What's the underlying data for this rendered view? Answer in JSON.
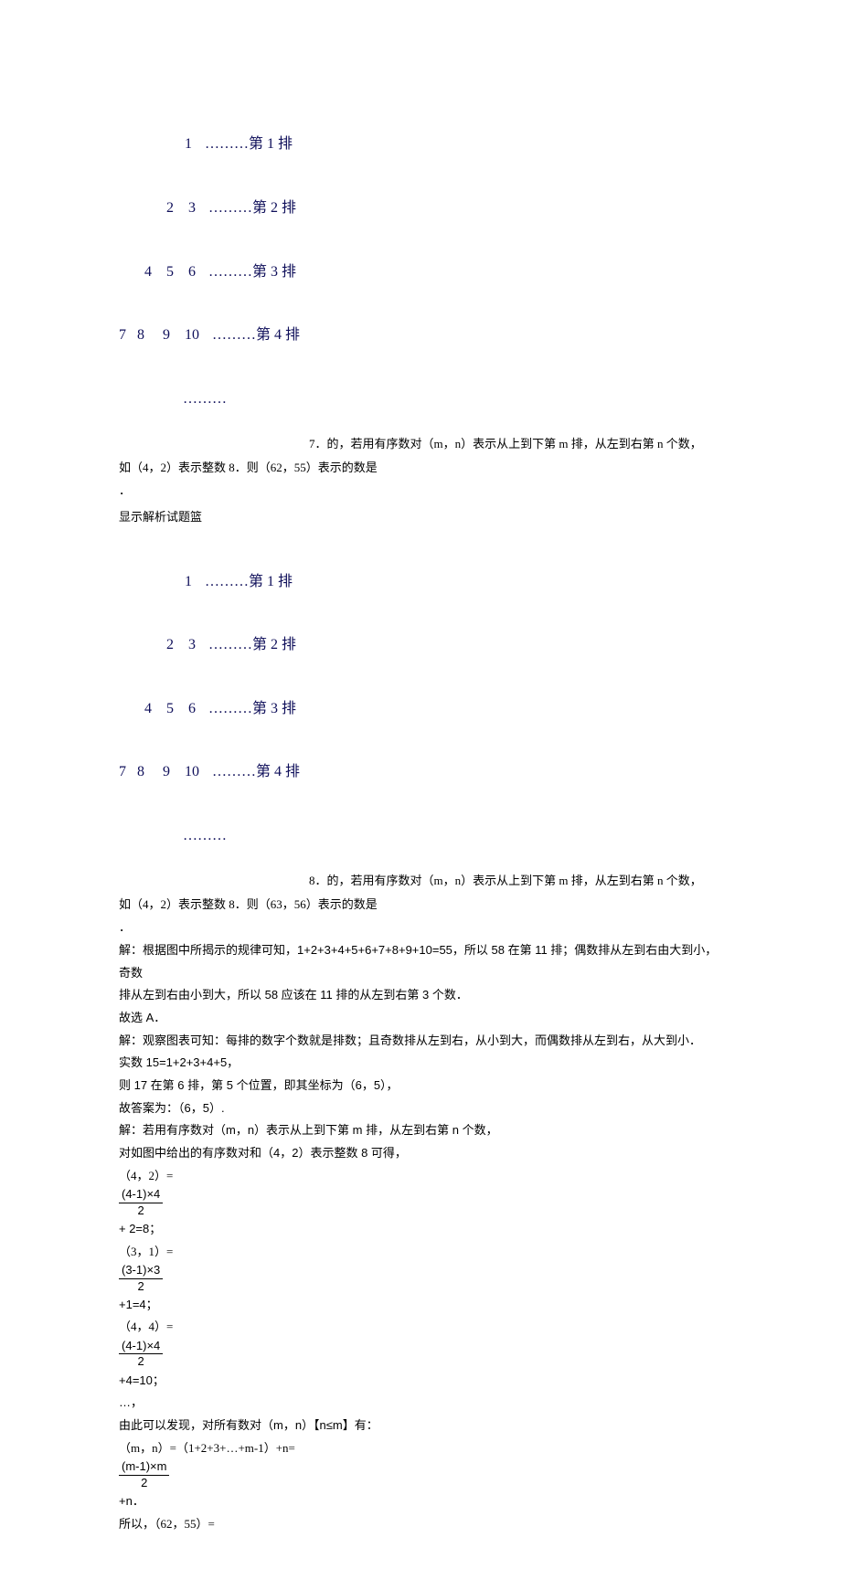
{
  "triangle": {
    "rows": [
      "1",
      "2    3",
      "4    5    6",
      "7   8     9    10"
    ],
    "labels": [
      "………第 1 排",
      "………第 2 排",
      "………第 3 排",
      "………第 4 排"
    ],
    "dots": "………",
    "color": "#0f0f5a"
  },
  "q7": {
    "lead": "7．的，若用有序数对（m，n）表示从上到下第 m 排，从左到右第 n 个数，",
    "line2": "如（4，2）表示整数 8．则（62，55）表示的数是",
    "dot": "．"
  },
  "links": {
    "show": " 显示解析",
    "basket": "试题篮"
  },
  "q8": {
    "lead": "8．的，若用有序数对（m，n）表示从上到下第 m 排，从左到右第 n 个数，",
    "line2": "如（4，2）表示整数 8．则（63，56）表示的数是",
    "dot": "．"
  },
  "sol1": {
    "l1": "解：根据图中所揭示的规律可知，1+2+3+4+5+6+7+8+9+10=55，所以 58 在第 11 排；偶数排从左到右由大到小，奇数",
    "l2": "排从左到右由小到大，所以 58 应该在 11 排的从左到右第 3 个数．",
    "l3": "故选 A．"
  },
  "sol2": {
    "l1": "解：观察图表可知：每排的数字个数就是排数；且奇数排从左到右，从小到大，而偶数排从左到右，从大到小．",
    "l2": "实数 15=1+2+3+4+5，",
    "l3": "则 17 在第 6 排，第 5 个位置，即其坐标为（6，5），",
    "l4": "故答案为：（6，5）."
  },
  "sol3": {
    "l1": "解：若用有序数对（m，n）表示从上到下第 m 排，从左到右第 n 个数，",
    "l2": "对如图中给出的有序数对和（4，2）表示整数 8 可得，",
    "p42a": "（4，2）=",
    "f1num": "(4-1)×4",
    "f1den": "2",
    "p42b": "+ 2=8；",
    "p31a": "（3，1）=",
    "f2num": "(3-1)×3",
    "f2den": "2",
    "p31b": "+1=4；",
    "p44a": "（4，4）=",
    "f3num": "(4-1)×4",
    "f3den": "2",
    "p44b": "+4=10；",
    "ell": "…，",
    "l3": "由此可以发现，对所有数对（m，n）【n≤m】有：",
    "pmna": "（m，n）=（1+2+3+…+m-1）+n=",
    "f4num": "(m-1)×m",
    "f4den": "2",
    "pmnb": "+n．",
    "l4": "所以，（62，55）="
  }
}
